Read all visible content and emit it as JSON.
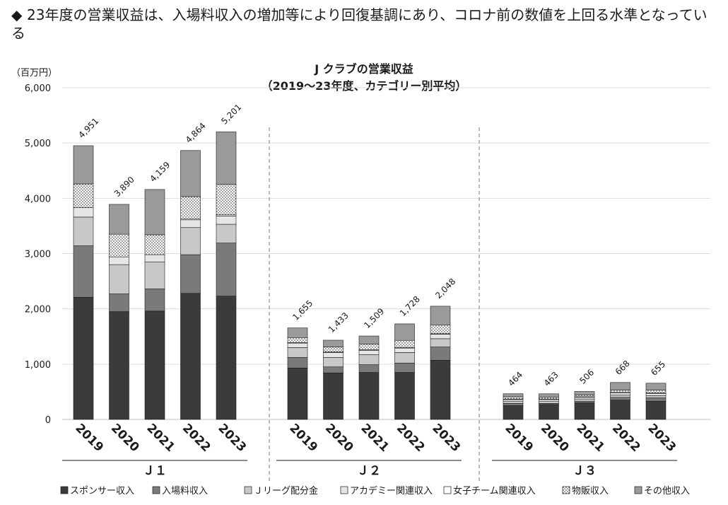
{
  "headline": {
    "marker": "◆",
    "text": "23年度の営業収益は、入場料収入の増加等により回復基調にあり、コロナ前の数値を上回る水準となっている"
  },
  "chart_data": {
    "type": "bar",
    "stacked": true,
    "title_line1": "J クラブの営業収益",
    "title_line2": "（2019～23年度、カテゴリー別平均）",
    "y_unit": "（百万円）",
    "ylim": [
      0,
      6000
    ],
    "y_ticks": [
      "0",
      "1,000",
      "2,000",
      "3,000",
      "4,000",
      "5,000",
      "6,000"
    ],
    "y_tick_values": [
      0,
      1000,
      2000,
      3000,
      4000,
      5000,
      6000
    ],
    "grid": true,
    "legend_position": "bottom",
    "series": [
      {
        "name": "スポンサー収入",
        "color": "#3b3b3b",
        "pattern": "solid"
      },
      {
        "name": "入場料収入",
        "color": "#7a7a7a",
        "pattern": "solid"
      },
      {
        "name": "Ｊリーグ配分金",
        "color": "#c8c8c8",
        "pattern": "solid"
      },
      {
        "name": "アカデミー関連収入",
        "color": "#e6e6e6",
        "pattern": "solid"
      },
      {
        "name": "女子チーム関連収入",
        "color": "#ffffff",
        "pattern": "solid"
      },
      {
        "name": "物販収入",
        "color": "#ffffff",
        "pattern": "dots"
      },
      {
        "name": "その他収入",
        "color": "#9a9a9a",
        "pattern": "solid"
      }
    ],
    "groups": [
      {
        "label": "Ｊ１",
        "categories": [
          "2019",
          "2020",
          "2021",
          "2022",
          "2023"
        ],
        "totals": [
          "4,951",
          "3,890",
          "4,159",
          "4,864",
          "5,201"
        ],
        "values": [
          [
            2210,
            930,
            520,
            170,
            0,
            430,
            691
          ],
          [
            1950,
            320,
            530,
            140,
            0,
            410,
            540
          ],
          [
            1960,
            400,
            490,
            130,
            0,
            360,
            819
          ],
          [
            2280,
            700,
            490,
            140,
            20,
            400,
            834
          ],
          [
            2230,
            960,
            340,
            150,
            20,
            550,
            951
          ]
        ]
      },
      {
        "label": "Ｊ２",
        "categories": [
          "2019",
          "2020",
          "2021",
          "2022",
          "2023"
        ],
        "totals": [
          "1,655",
          "1,433",
          "1,509",
          "1,728",
          "2,048"
        ],
        "values": [
          [
            930,
            190,
            180,
            80,
            10,
            90,
            175
          ],
          [
            840,
            110,
            170,
            90,
            10,
            90,
            123
          ],
          [
            850,
            140,
            180,
            80,
            10,
            100,
            149
          ],
          [
            850,
            170,
            190,
            80,
            10,
            130,
            298
          ],
          [
            1070,
            240,
            150,
            80,
            10,
            160,
            338
          ]
        ]
      },
      {
        "label": "Ｊ３",
        "categories": [
          "2019",
          "2020",
          "2021",
          "2022",
          "2023"
        ],
        "totals": [
          "464",
          "463",
          "506",
          "668",
          "655"
        ],
        "values": [
          [
            250,
            40,
            40,
            30,
            10,
            40,
            54
          ],
          [
            270,
            20,
            40,
            30,
            10,
            30,
            63
          ],
          [
            300,
            30,
            40,
            30,
            10,
            30,
            66
          ],
          [
            350,
            50,
            40,
            40,
            10,
            40,
            138
          ],
          [
            330,
            60,
            40,
            40,
            10,
            50,
            125
          ]
        ]
      }
    ]
  }
}
